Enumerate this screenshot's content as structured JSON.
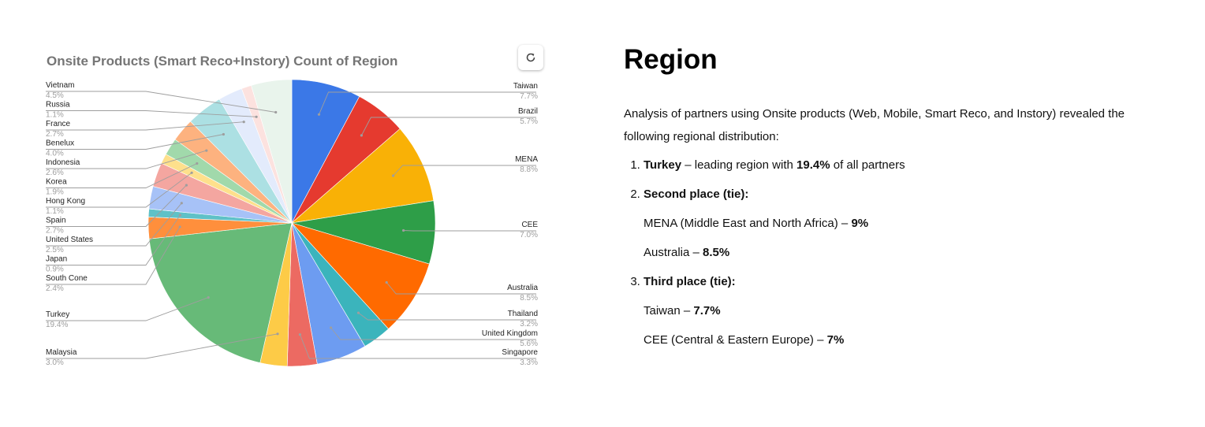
{
  "chart_data": {
    "type": "pie",
    "title": "Onsite Products (Smart Reco+Instory) Count of Region",
    "slices": [
      {
        "label": "Taiwan",
        "value": 7.7,
        "display": "7.7%",
        "color": "#3b78e7",
        "side": "right"
      },
      {
        "label": "Brazil",
        "value": 5.7,
        "display": "5.7%",
        "color": "#e53a2f",
        "side": "right"
      },
      {
        "label": "MENA",
        "value": 8.8,
        "display": "8.8%",
        "color": "#f9b106",
        "side": "right"
      },
      {
        "label": "CEE",
        "value": 7.0,
        "display": "7.0%",
        "color": "#2e9e48",
        "side": "right"
      },
      {
        "label": "Australia",
        "value": 8.5,
        "display": "8.5%",
        "color": "#ff6a00",
        "side": "right"
      },
      {
        "label": "Thailand",
        "value": 3.2,
        "display": "3.2%",
        "color": "#3bb4bc",
        "side": "right"
      },
      {
        "label": "United Kingdom",
        "value": 5.6,
        "display": "5.6%",
        "color": "#6d9cf1",
        "side": "right"
      },
      {
        "label": "Singapore",
        "value": 3.3,
        "display": "3.3%",
        "color": "#ec6a62",
        "side": "right"
      },
      {
        "label": "Malaysia",
        "value": 3.0,
        "display": "3.0%",
        "color": "#fdcb47",
        "side": "left"
      },
      {
        "label": "Turkey",
        "value": 19.4,
        "display": "19.4%",
        "color": "#67ba78",
        "side": "left"
      },
      {
        "label": "South Cone",
        "value": 2.4,
        "display": "2.4%",
        "color": "#ff8f3c",
        "side": "left"
      },
      {
        "label": "Japan",
        "value": 0.9,
        "display": "0.9%",
        "color": "#5fc1c7",
        "side": "left"
      },
      {
        "label": "United States",
        "value": 2.5,
        "display": "2.5%",
        "color": "#a7c2f7",
        "side": "left"
      },
      {
        "label": "Spain",
        "value": 2.7,
        "display": "2.7%",
        "color": "#f4a6a0",
        "side": "left"
      },
      {
        "label": "Hong Kong",
        "value": 1.1,
        "display": "1.1%",
        "color": "#fee08c",
        "side": "left"
      },
      {
        "label": "Korea",
        "value": 1.9,
        "display": "1.9%",
        "color": "#a1d9ab",
        "side": "left"
      },
      {
        "label": "Indonesia",
        "value": 2.6,
        "display": "2.6%",
        "color": "#fdb27f",
        "side": "left"
      },
      {
        "label": "Benelux",
        "value": 4.0,
        "display": "4.0%",
        "color": "#ace0e3",
        "side": "left"
      },
      {
        "label": "France",
        "value": 2.7,
        "display": "2.7%",
        "color": "#e3ebfc",
        "side": "left"
      },
      {
        "label": "Russia",
        "value": 1.1,
        "display": "1.1%",
        "color": "#fce2df",
        "side": "left"
      },
      {
        "label": "Vietnam",
        "value": 4.5,
        "display": "4.5%",
        "color": "#e9f4ec",
        "side": "left"
      }
    ]
  },
  "ui": {
    "refresh_icon": "refresh-icon"
  },
  "article": {
    "heading": "Region",
    "intro": "Analysis of partners using Onsite products (Web, Mobile, Smart Reco, and Instory) revealed the following regional distribution:",
    "item1": {
      "bold": "Turkey",
      "text": " – leading region with ",
      "value": "19.4%",
      "tail": " of all partners"
    },
    "item2": {
      "title": "Second place (tie):",
      "sub1_text": "MENA (Middle East and North Africa) – ",
      "sub1_value": "9%",
      "sub2_text": "Australia – ",
      "sub2_value": "8.5%"
    },
    "item3": {
      "title": "Third place (tie):",
      "sub1_text": "Taiwan – ",
      "sub1_value": "7.7%",
      "sub2_text": "CEE (Central & Eastern Europe) – ",
      "sub2_value": "7%"
    }
  }
}
